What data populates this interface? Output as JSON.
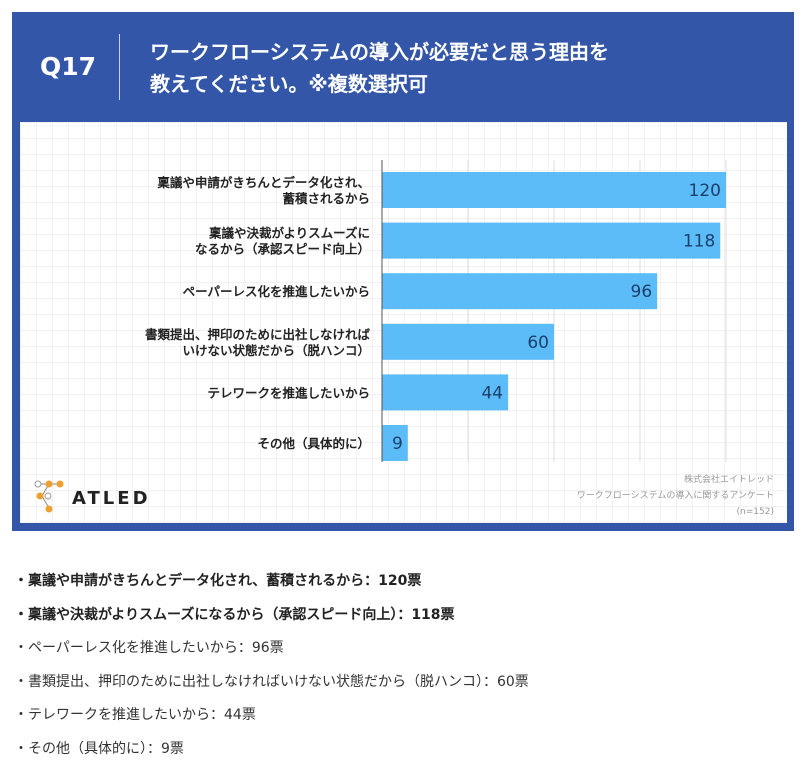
{
  "header": {
    "question": "Q17",
    "title_line1": "ワークフローシステムの導入が必要だと思う理由を",
    "title_line2": "教えてください。※複数選択可"
  },
  "chart_data": {
    "type": "bar",
    "orientation": "horizontal",
    "categories": [
      [
        "稟議や申請がきちんとデータ化され、",
        "蓄積されるから"
      ],
      [
        "稟議や決裁がよりスムーズに",
        "なるから（承認スピード向上）"
      ],
      [
        "ペーパーレス化を推進したいから"
      ],
      [
        "書類提出、押印のために出社しなければ",
        "いけない状態だから（脱ハンコ）"
      ],
      [
        "テレワークを推進したいから"
      ],
      [
        "その他（具体的に）"
      ]
    ],
    "values": [
      120,
      118,
      96,
      60,
      44,
      9
    ],
    "xlim": [
      0,
      120
    ],
    "grid_step": 30,
    "bar_color": "#5bbcf7"
  },
  "source": {
    "company": "株式会社エイトレッド",
    "survey": "ワークフローシステムの導入に関するアンケート",
    "n": "(n=152)"
  },
  "logo": {
    "text": "ATLED"
  },
  "list": [
    {
      "text": "・稟議や申請がきちんとデータ化され、蓄積されるから：120票",
      "bold": true
    },
    {
      "text": "・稟議や決裁がよりスムーズになるから（承認スピード向上）：118票",
      "bold": true
    },
    {
      "text": "・ペーパーレス化を推進したいから：96票",
      "bold": false
    },
    {
      "text": "・書類提出、押印のために出社しなければいけない状態だから（脱ハンコ）：60票",
      "bold": false
    },
    {
      "text": "・テレワークを推進したいから：44票",
      "bold": false
    },
    {
      "text": "・その他（具体的に）：9票",
      "bold": false
    }
  ]
}
